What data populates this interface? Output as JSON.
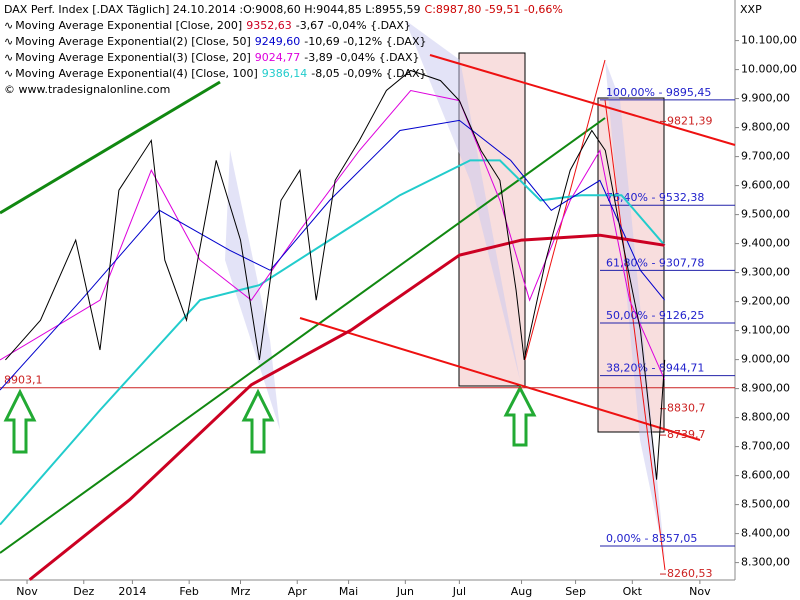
{
  "chart_data": {
    "type": "line",
    "header": {
      "title": "DAX Perf. Index [.DAX Täglich] 24.10.2014 :O:9008,60 H:9044,85 L:8955,59",
      "change": "C:8987,80 -59,51 -0,66%",
      "source": "© www.tradesignalonline.com",
      "corner": "XXP"
    },
    "xlim": [
      0,
      272
    ],
    "ylim": [
      8240,
      10240
    ],
    "xticks": [
      {
        "value": 10,
        "label": "Nov"
      },
      {
        "value": 31,
        "label": "Dez"
      },
      {
        "value": 49,
        "label": "2014"
      },
      {
        "value": 70,
        "label": "Feb"
      },
      {
        "value": 89,
        "label": "Mrz"
      },
      {
        "value": 110,
        "label": "Apr"
      },
      {
        "value": 129,
        "label": "Mai"
      },
      {
        "value": 150,
        "label": "Jun"
      },
      {
        "value": 170,
        "label": "Jul"
      },
      {
        "value": 193,
        "label": "Aug"
      },
      {
        "value": 213,
        "label": "Sep"
      },
      {
        "value": 234,
        "label": "Okt"
      },
      {
        "value": 259,
        "label": "Nov"
      }
    ],
    "yticks": [
      {
        "value": 8300,
        "label": "8.300,00"
      },
      {
        "value": 8400,
        "label": "8.400,00"
      },
      {
        "value": 8500,
        "label": "8.500,00"
      },
      {
        "value": 8600,
        "label": "8.600,00"
      },
      {
        "value": 8700,
        "label": "8.700,00"
      },
      {
        "value": 8800,
        "label": "8.800,00"
      },
      {
        "value": 8900,
        "label": "8.900,00"
      },
      {
        "value": 9000,
        "label": "9.000,00"
      },
      {
        "value": 9100,
        "label": "9.100,00"
      },
      {
        "value": 9200,
        "label": "9.200,00"
      },
      {
        "value": 9300,
        "label": "9.300,00"
      },
      {
        "value": 9400,
        "label": "9.400,00"
      },
      {
        "value": 9500,
        "label": "9.500,00"
      },
      {
        "value": 9600,
        "label": "9.600,00"
      },
      {
        "value": 9700,
        "label": "9.700,00"
      },
      {
        "value": 9800,
        "label": "9.800,00"
      },
      {
        "value": 9900,
        "label": "9.900,00"
      },
      {
        "value": 10000,
        "label": "10.000,00"
      },
      {
        "value": 10100,
        "label": "10.100,00"
      }
    ],
    "series": [
      {
        "name": "DAX",
        "color": "#000000",
        "x": [
          2,
          15,
          28,
          37,
          44,
          56,
          61,
          69,
          80,
          89,
          96,
          104,
          111,
          117,
          124,
          133,
          143,
          152,
          163,
          170,
          178,
          185,
          191,
          194,
          202,
          211,
          219,
          224,
          231,
          237,
          243,
          246
        ],
        "values": [
          8999,
          9136,
          9412,
          9033,
          9584,
          9756,
          9343,
          9136,
          9687,
          9412,
          8999,
          9549,
          9653,
          9205,
          9618,
          9756,
          9928,
          9997,
          9962,
          9893,
          9721,
          9618,
          9239,
          8999,
          9343,
          9653,
          9790,
          9721,
          9377,
          9102,
          8586,
          8999
        ]
      },
      {
        "name": "Moving Average Exponential [Close, 200]",
        "value_text": "9352,63",
        "rest": "-3,67 -0,04% {.DAX}",
        "color": "#cc0022",
        "width": 3,
        "x": [
          11,
          48,
          93,
          130,
          170,
          193,
          222,
          246
        ],
        "values": [
          8241,
          8517,
          8913,
          9102,
          9360,
          9412,
          9429,
          9394
        ]
      },
      {
        "name": "Moving Average Exponential(2) [Close, 50]",
        "value_text": "9249,60",
        "rest": "-10,69 -0,12% {.DAX}",
        "color": "#0000cc",
        "width": 1,
        "x": [
          0,
          30,
          59,
          85,
          100,
          122,
          148,
          170,
          189,
          204,
          222,
          237,
          246
        ],
        "values": [
          8895,
          9205,
          9515,
          9377,
          9308,
          9549,
          9790,
          9825,
          9687,
          9515,
          9618,
          9308,
          9205
        ]
      },
      {
        "name": "Moving Average Exponential(3) [Close, 20]",
        "value_text": "9024,77",
        "rest": "-3,89 -0,04% {.DAX}",
        "color": "#dd00dd",
        "width": 1,
        "x": [
          0,
          37,
          56,
          74,
          93,
          111,
          133,
          152,
          170,
          185,
          196,
          211,
          222,
          233,
          246
        ],
        "values": [
          8999,
          9205,
          9653,
          9343,
          9205,
          9446,
          9721,
          9928,
          9893,
          9549,
          9205,
          9549,
          9721,
          9205,
          8930
        ]
      },
      {
        "name": "Moving Average Exponential(4) [Close, 100]",
        "value_text": "9386,14",
        "rest": "-8,05 -0,09% {.DAX}",
        "color": "#22cccc",
        "width": 2,
        "x": [
          0,
          37,
          74,
          96,
          122,
          148,
          174,
          185,
          200,
          215,
          230,
          246
        ],
        "values": [
          8431,
          8826,
          9205,
          9257,
          9412,
          9567,
          9687,
          9687,
          9549,
          9567,
          9567,
          9394
        ]
      }
    ],
    "fib": [
      {
        "value": 9895.45,
        "label": "100,00% - 9895,45"
      },
      {
        "value": 9532.38,
        "label": "76,40% - 9532,38"
      },
      {
        "value": 9307.78,
        "label": "61,80% - 9307,78"
      },
      {
        "value": 9126.25,
        "label": "50,00% - 9126,25"
      },
      {
        "value": 8944.71,
        "label": "38,20% - 8944,71"
      },
      {
        "value": 8357.05,
        "label": "0,00% - 8357,05"
      }
    ],
    "levels": [
      {
        "value": 9821.39,
        "label": "9821,39"
      },
      {
        "value": 8830.7,
        "label": "8830,7"
      },
      {
        "value": 8739.7,
        "label": "8739,7"
      },
      {
        "value": 8260.53,
        "label": "8260,53"
      }
    ],
    "support": {
      "value": 8903.1,
      "label": "8903,1"
    }
  }
}
